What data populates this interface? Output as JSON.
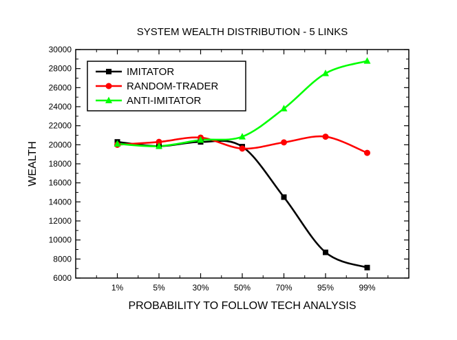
{
  "chart_data": {
    "type": "line",
    "title": "SYSTEM WEALTH DISTRIBUTION - 5 LINKS",
    "xlabel": "PROBABILITY TO FOLLOW TECH ANALYSIS",
    "ylabel": "WEALTH",
    "categories": [
      "1%",
      "5%",
      "30%",
      "50%",
      "70%",
      "95%",
      "99%"
    ],
    "ylim": [
      6000,
      30000
    ],
    "yticks": [
      6000,
      8000,
      10000,
      12000,
      14000,
      16000,
      18000,
      20000,
      22000,
      24000,
      26000,
      28000,
      30000
    ],
    "ytick_labels": [
      "6000",
      "8000",
      "10000",
      "12000",
      "14000",
      "16000",
      "18000",
      "20000",
      "22000",
      "24000",
      "26000",
      "28000",
      "30000"
    ],
    "grid": false,
    "legend_position": "top-left",
    "series": [
      {
        "name": "IMITATOR",
        "color": "#000000",
        "marker": "square",
        "values": [
          20300,
          19850,
          20300,
          19800,
          14500,
          8700,
          7100
        ]
      },
      {
        "name": "RANDOM-TRADER",
        "color": "#ff0000",
        "marker": "circle",
        "values": [
          20000,
          20300,
          20750,
          19600,
          20250,
          20850,
          19150
        ]
      },
      {
        "name": "ANTI-IMITATOR",
        "color": "#00ff00",
        "marker": "triangle",
        "values": [
          20100,
          19850,
          20500,
          20850,
          23800,
          27500,
          28800
        ]
      }
    ]
  }
}
